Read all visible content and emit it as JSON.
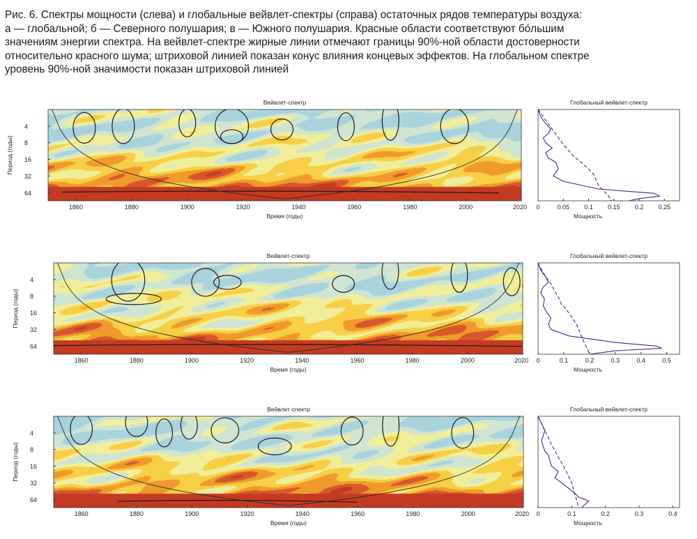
{
  "caption": {
    "lines": [
      "Рис. 6. Спектры мощности (слева) и глобальные вейвлет-спектры (справа) остаточных рядов температуры воздуха:",
      "а — глобальной; б — Северного полушария; в — Южного полушария. Красные области соответствуют бóльшим",
      "значениям энергии спектра. На вейвлет-спектре жирные линии отмечают границы 90%-ной области достоверности",
      "относительно красного шума; штриховой линией показан конус влияния концевых эффектов. На глобальном спектре",
      "уровень 90%-ной значимости показан штриховой линией"
    ]
  },
  "palette": {
    "spectrum": [
      "#a9d3dc",
      "#cfe5d2",
      "#f1ee9a",
      "#f6cf45",
      "#ef9a2b",
      "#d8572b",
      "#c43a22"
    ],
    "contour": "#1a1a1a",
    "global_line": "#2a2f8c"
  },
  "chart_data": [
    {
      "type": "heatmap",
      "panel": "а",
      "title": "Вейвлет-спектр",
      "xlabel": "Время (годы)",
      "ylabel": "Период (годы)",
      "xlim": [
        1850,
        2020
      ],
      "xticks": [
        1860,
        1880,
        1900,
        1920,
        1940,
        1960,
        1980,
        2000,
        2020
      ],
      "yticks": [
        4,
        8,
        16,
        32,
        64
      ],
      "y_scale": "log2",
      "ylim": [
        2,
        90
      ],
      "significant_regions": [
        {
          "t": 1863,
          "p": 4.3,
          "dt": 4,
          "dp": 0.22
        },
        {
          "t": 1877,
          "p": 4.0,
          "dt": 4,
          "dp": 0.25
        },
        {
          "t": 1900,
          "p": 3.5,
          "dt": 3,
          "dp": 0.2
        },
        {
          "t": 1916,
          "p": 4.0,
          "dt": 6,
          "dp": 0.25
        },
        {
          "t": 1916,
          "p": 6.2,
          "dt": 4,
          "dp": 0.1
        },
        {
          "t": 1934,
          "p": 4.6,
          "dt": 4,
          "dp": 0.15
        },
        {
          "t": 1957,
          "p": 4.1,
          "dt": 3,
          "dp": 0.2
        },
        {
          "t": 1973,
          "p": 3.2,
          "dt": 3,
          "dp": 0.28
        },
        {
          "t": 1996,
          "p": 4.0,
          "dt": 5,
          "dp": 0.25
        }
      ],
      "significant_band": [
        1855,
        2012,
        58,
        100
      ]
    },
    {
      "type": "line",
      "panel": "а",
      "title": "Глобальный вейвлет-спектр",
      "xlabel": "Мощность",
      "xlim": [
        0,
        0.28
      ],
      "xticks": [
        0,
        0.05,
        0.1,
        0.15,
        0.2,
        0.25
      ],
      "ylim": [
        2,
        90
      ],
      "y_scale": "log2",
      "series": [
        {
          "style": "solid",
          "points": [
            [
              0.0,
              2
            ],
            [
              0.005,
              2.7
            ],
            [
              0.015,
              3.6
            ],
            [
              0.025,
              4.5
            ],
            [
              0.02,
              5.5
            ],
            [
              0.01,
              6.5
            ],
            [
              0.015,
              8
            ],
            [
              0.028,
              10
            ],
            [
              0.015,
              12
            ],
            [
              0.02,
              15
            ],
            [
              0.035,
              18
            ],
            [
              0.04,
              24
            ],
            [
              0.03,
              32
            ],
            [
              0.05,
              40
            ],
            [
              0.12,
              55
            ],
            [
              0.23,
              66
            ],
            [
              0.24,
              74
            ],
            [
              0.2,
              82
            ],
            [
              0.18,
              90
            ]
          ]
        },
        {
          "style": "dashed",
          "points": [
            [
              0.0,
              2
            ],
            [
              0.01,
              2.7
            ],
            [
              0.02,
              3.6
            ],
            [
              0.03,
              4.8
            ],
            [
              0.04,
              6.5
            ],
            [
              0.05,
              8.5
            ],
            [
              0.06,
              11
            ],
            [
              0.07,
              14
            ],
            [
              0.085,
              18
            ],
            [
              0.1,
              24
            ],
            [
              0.11,
              30
            ],
            [
              0.115,
              38
            ],
            [
              0.12,
              48
            ],
            [
              0.13,
              60
            ],
            [
              0.14,
              75
            ],
            [
              0.145,
              90
            ]
          ]
        }
      ]
    },
    {
      "type": "heatmap",
      "panel": "б",
      "title": "Вейвлет-спектр",
      "xlabel": "Время (годы)",
      "ylabel": "Период (годы)",
      "xlim": [
        1850,
        2020
      ],
      "xticks": [
        1860,
        1880,
        1900,
        1920,
        1940,
        1960,
        1980,
        2000,
        2020
      ],
      "yticks": [
        4,
        8,
        16,
        32,
        64
      ],
      "y_scale": "log2",
      "ylim": [
        2,
        90
      ],
      "significant_regions": [
        {
          "t": 1877,
          "p": 4.1,
          "dt": 6,
          "dp": 0.3
        },
        {
          "t": 1879,
          "p": 9.0,
          "dt": 10,
          "dp": 0.08
        },
        {
          "t": 1905,
          "p": 4.5,
          "dt": 5,
          "dp": 0.2
        },
        {
          "t": 1913,
          "p": 4.5,
          "dt": 5,
          "dp": 0.1
        },
        {
          "t": 1955,
          "p": 4.8,
          "dt": 4,
          "dp": 0.12
        },
        {
          "t": 1972,
          "p": 2.9,
          "dt": 3,
          "dp": 0.25
        },
        {
          "t": 1997,
          "p": 3.3,
          "dt": 3,
          "dp": 0.25
        },
        {
          "t": 2016,
          "p": 4.4,
          "dt": 3,
          "dp": 0.2
        }
      ],
      "significant_band": [
        1850,
        2020,
        58,
        100
      ]
    },
    {
      "type": "line",
      "panel": "б",
      "title": "Глобальный вейвлет-спектр",
      "xlabel": "Мощность",
      "xlim": [
        0,
        0.55
      ],
      "xticks": [
        0,
        0.1,
        0.2,
        0.3,
        0.4,
        0.5
      ],
      "ylim": [
        2,
        90
      ],
      "y_scale": "log2",
      "series": [
        {
          "style": "solid",
          "points": [
            [
              0.0,
              2
            ],
            [
              0.01,
              2.7
            ],
            [
              0.03,
              3.6
            ],
            [
              0.04,
              4.5
            ],
            [
              0.02,
              5.5
            ],
            [
              0.01,
              7
            ],
            [
              0.025,
              9
            ],
            [
              0.02,
              12
            ],
            [
              0.035,
              16
            ],
            [
              0.05,
              20
            ],
            [
              0.04,
              26
            ],
            [
              0.05,
              32
            ],
            [
              0.12,
              42
            ],
            [
              0.3,
              55
            ],
            [
              0.46,
              64
            ],
            [
              0.48,
              70
            ],
            [
              0.3,
              78
            ],
            [
              0.2,
              90
            ]
          ]
        },
        {
          "style": "dashed",
          "points": [
            [
              0.0,
              2
            ],
            [
              0.015,
              2.7
            ],
            [
              0.03,
              3.6
            ],
            [
              0.05,
              4.8
            ],
            [
              0.065,
              6.5
            ],
            [
              0.08,
              8.5
            ],
            [
              0.09,
              11
            ],
            [
              0.11,
              14
            ],
            [
              0.13,
              19
            ],
            [
              0.15,
              26
            ],
            [
              0.16,
              34
            ],
            [
              0.17,
              44
            ],
            [
              0.18,
              56
            ],
            [
              0.19,
              70
            ],
            [
              0.2,
              90
            ]
          ]
        }
      ]
    },
    {
      "type": "heatmap",
      "panel": "в",
      "title": "Вейвлет-спектр",
      "xlabel": "Время (годы)",
      "ylabel": "Период (годы)",
      "xlim": [
        1850,
        2020
      ],
      "xticks": [
        1860,
        1880,
        1900,
        1920,
        1940,
        1960,
        1980,
        2000,
        2020
      ],
      "yticks": [
        4,
        8,
        16,
        32,
        64
      ],
      "y_scale": "log2",
      "ylim": [
        2,
        90
      ],
      "significant_regions": [
        {
          "t": 1860,
          "p": 3.4,
          "dt": 4,
          "dp": 0.22
        },
        {
          "t": 1880,
          "p": 2.6,
          "dt": 4,
          "dp": 0.2
        },
        {
          "t": 1890,
          "p": 4.0,
          "dt": 3,
          "dp": 0.2
        },
        {
          "t": 1899,
          "p": 2.9,
          "dt": 3,
          "dp": 0.2
        },
        {
          "t": 1912,
          "p": 3.6,
          "dt": 5,
          "dp": 0.18
        },
        {
          "t": 1930,
          "p": 7.0,
          "dt": 6,
          "dp": 0.12
        },
        {
          "t": 1958,
          "p": 3.7,
          "dt": 4,
          "dp": 0.2
        },
        {
          "t": 1972,
          "p": 2.9,
          "dt": 3,
          "dp": 0.3
        },
        {
          "t": 1998,
          "p": 4.0,
          "dt": 4,
          "dp": 0.22
        }
      ],
      "significant_band": [
        1873,
        1960,
        64,
        100
      ]
    },
    {
      "type": "line",
      "panel": "в",
      "title": "Глобальный вейвлет-спектр",
      "xlabel": "Мощность",
      "xlim": [
        0,
        0.42
      ],
      "xticks": [
        0,
        0.1,
        0.2,
        0.3,
        0.4
      ],
      "ylim": [
        2,
        90
      ],
      "y_scale": "log2",
      "series": [
        {
          "style": "solid",
          "points": [
            [
              0.0,
              2
            ],
            [
              0.01,
              2.7
            ],
            [
              0.02,
              3.6
            ],
            [
              0.015,
              4.5
            ],
            [
              0.01,
              5.5
            ],
            [
              0.015,
              7
            ],
            [
              0.02,
              8.5
            ],
            [
              0.03,
              10
            ],
            [
              0.035,
              12.5
            ],
            [
              0.04,
              16
            ],
            [
              0.06,
              20
            ],
            [
              0.05,
              26
            ],
            [
              0.07,
              32
            ],
            [
              0.09,
              40
            ],
            [
              0.11,
              50
            ],
            [
              0.12,
              58
            ],
            [
              0.15,
              68
            ],
            [
              0.14,
              78
            ],
            [
              0.13,
              90
            ]
          ]
        },
        {
          "style": "dashed",
          "points": [
            [
              0.0,
              2
            ],
            [
              0.01,
              2.7
            ],
            [
              0.02,
              3.6
            ],
            [
              0.03,
              4.8
            ],
            [
              0.04,
              6.5
            ],
            [
              0.05,
              8.5
            ],
            [
              0.06,
              11
            ],
            [
              0.07,
              14
            ],
            [
              0.08,
              18
            ],
            [
              0.09,
              24
            ],
            [
              0.1,
              32
            ],
            [
              0.105,
              42
            ],
            [
              0.11,
              54
            ],
            [
              0.115,
              68
            ],
            [
              0.12,
              90
            ]
          ]
        }
      ]
    }
  ]
}
